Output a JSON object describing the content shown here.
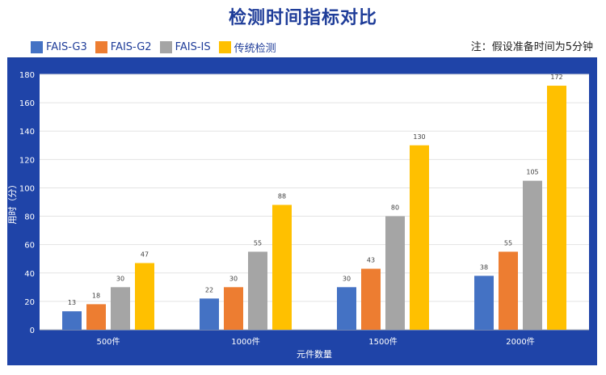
{
  "title": "检测时间指标对比",
  "note": "注：假设准备时间为5分钟",
  "colors": {
    "FAIS-G3": "#4472c4",
    "FAIS-G2": "#ed7d31",
    "FAIS-IS": "#a5a5a5",
    "传统检测": "#ffc000",
    "panel": "#1f44a8",
    "title": "#1f3d99"
  },
  "chart_data": {
    "type": "bar",
    "categories": [
      "500件",
      "1000件",
      "1500件",
      "2000件"
    ],
    "series": [
      {
        "name": "FAIS-G3",
        "values": [
          13,
          22,
          30,
          38
        ]
      },
      {
        "name": "FAIS-G2",
        "values": [
          18,
          30,
          43,
          55
        ]
      },
      {
        "name": "FAIS-IS",
        "values": [
          30,
          55,
          80,
          105
        ]
      },
      {
        "name": "传统检测",
        "values": [
          47,
          88,
          130,
          172
        ]
      }
    ],
    "xlabel": "元件数量",
    "ylabel": "用时（分）",
    "ylim": [
      0,
      180
    ],
    "yticks": [
      0,
      20,
      40,
      60,
      80,
      100,
      120,
      140,
      160,
      180
    ],
    "grid": true,
    "legend": "top-left",
    "data_labels": true
  }
}
